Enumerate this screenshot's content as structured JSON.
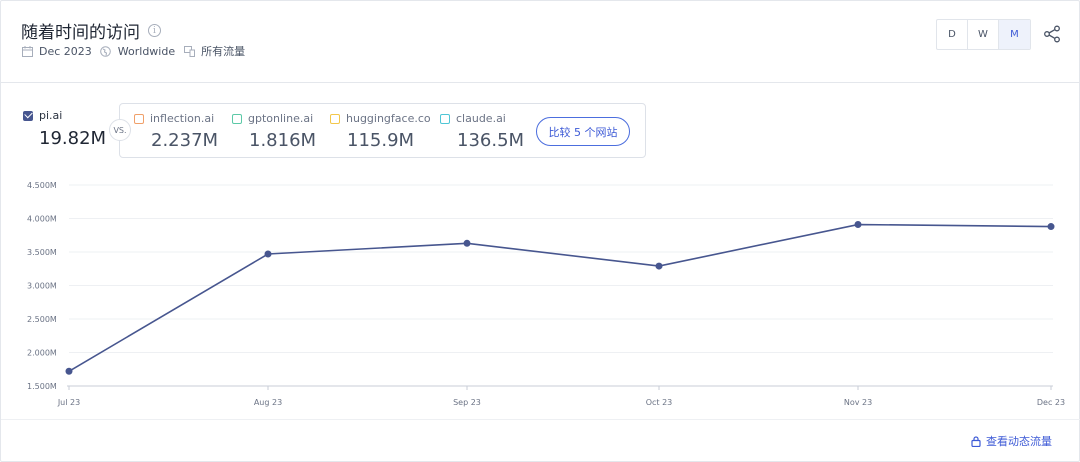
{
  "header": {
    "title": "随着时间的访问",
    "date": "Dec 2023",
    "region": "Worldwide",
    "traffic": "所有流量"
  },
  "granularity": [
    "D",
    "W",
    "M"
  ],
  "primary": {
    "site": "pi.ai",
    "value": "19.82M",
    "color": "#47568f"
  },
  "vs_label": "VS.",
  "competitors": [
    {
      "site": "inflection.ai",
      "value": "2.237M",
      "color": "#f0a06a"
    },
    {
      "site": "gptonline.ai",
      "value": "1.816M",
      "color": "#5cc9a7"
    },
    {
      "site": "huggingface.co",
      "value": "115.9M",
      "color": "#f3c74a"
    },
    {
      "site": "claude.ai",
      "value": "136.5M",
      "color": "#4fc6d6"
    }
  ],
  "compare_button": "比较 5 个网站",
  "footer_link": "查看动态流量",
  "chart_data": {
    "type": "line",
    "categories": [
      "Jul 23",
      "Aug 23",
      "Sep 23",
      "Oct 23",
      "Nov 23",
      "Dec 23"
    ],
    "series": [
      {
        "name": "pi.ai",
        "values": [
          1.72,
          3.47,
          3.63,
          3.29,
          3.91,
          3.88
        ],
        "color": "#47568f"
      }
    ],
    "yticks": [
      "1.500M",
      "2.000M",
      "2.500M",
      "3.000M",
      "3.500M",
      "4.000M",
      "4.500M"
    ],
    "ylim": [
      1.5,
      4.5
    ],
    "grid": true
  }
}
